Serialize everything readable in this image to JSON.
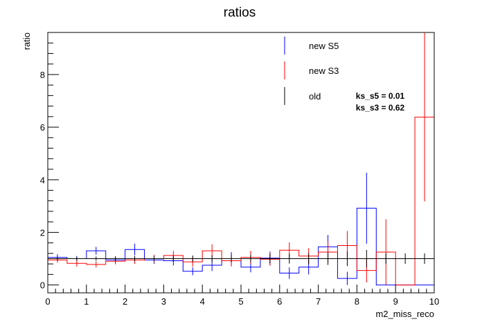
{
  "chart_data": {
    "type": "step-histogram",
    "title": "ratios",
    "xlabel": "m2_miss_reco",
    "ylabel": "ratio",
    "xlim": [
      0,
      10
    ],
    "ylim": [
      -0.3,
      9.6
    ],
    "x_ticks": [
      0,
      1,
      2,
      3,
      4,
      5,
      6,
      7,
      8,
      9,
      10
    ],
    "y_ticks": [
      0,
      2,
      4,
      6,
      8
    ],
    "grid": false,
    "legend_position": "top-right",
    "bin_edges": [
      0,
      0.5,
      1,
      1.5,
      2,
      2.5,
      3,
      3.5,
      4,
      4.5,
      5,
      5.5,
      6,
      6.5,
      7,
      7.5,
      8,
      8.5,
      9,
      9.5,
      10
    ],
    "series": [
      {
        "name": "new S5",
        "color": "#0000ff",
        "values": [
          1.05,
          1.0,
          1.3,
          0.95,
          1.35,
          0.95,
          0.92,
          0.52,
          0.75,
          1.0,
          0.68,
          1.02,
          0.45,
          0.68,
          1.45,
          0.25,
          2.92,
          0.0,
          0.0,
          0.0
        ],
        "errors": [
          0.12,
          0.1,
          0.15,
          0.12,
          0.22,
          0.15,
          0.18,
          0.15,
          0.22,
          0.25,
          0.2,
          0.25,
          0.22,
          0.28,
          0.45,
          0.25,
          1.35,
          0,
          0,
          0
        ]
      },
      {
        "name": "new S3",
        "color": "#ff0000",
        "values": [
          0.95,
          0.82,
          0.78,
          0.9,
          0.95,
          1.0,
          1.12,
          0.88,
          1.3,
          0.92,
          1.05,
          0.98,
          1.32,
          1.1,
          1.25,
          1.5,
          0.55,
          1.25,
          0.0,
          6.38
        ],
        "errors": [
          0.1,
          0.12,
          0.12,
          0.12,
          0.15,
          0.15,
          0.18,
          0.18,
          0.25,
          0.22,
          0.25,
          0.25,
          0.3,
          0.3,
          0.4,
          0.55,
          0.45,
          1.25,
          0,
          3.2
        ]
      },
      {
        "name": "old",
        "color": "#000000",
        "values": [
          1,
          1,
          1,
          1,
          1,
          1,
          1,
          1,
          1,
          1,
          1,
          1,
          1,
          1,
          1,
          1,
          1,
          1,
          1,
          1
        ],
        "errors": [
          0.07,
          0.07,
          0.08,
          0.09,
          0.1,
          0.1,
          0.11,
          0.12,
          0.13,
          0.14,
          0.15,
          0.17,
          0.19,
          0.21,
          0.24,
          0.28,
          0.33,
          0.2,
          0.2,
          0.2
        ]
      }
    ],
    "annotations": [
      "ks_s5 = 0.01",
      "ks_s3 = 0.62"
    ]
  }
}
